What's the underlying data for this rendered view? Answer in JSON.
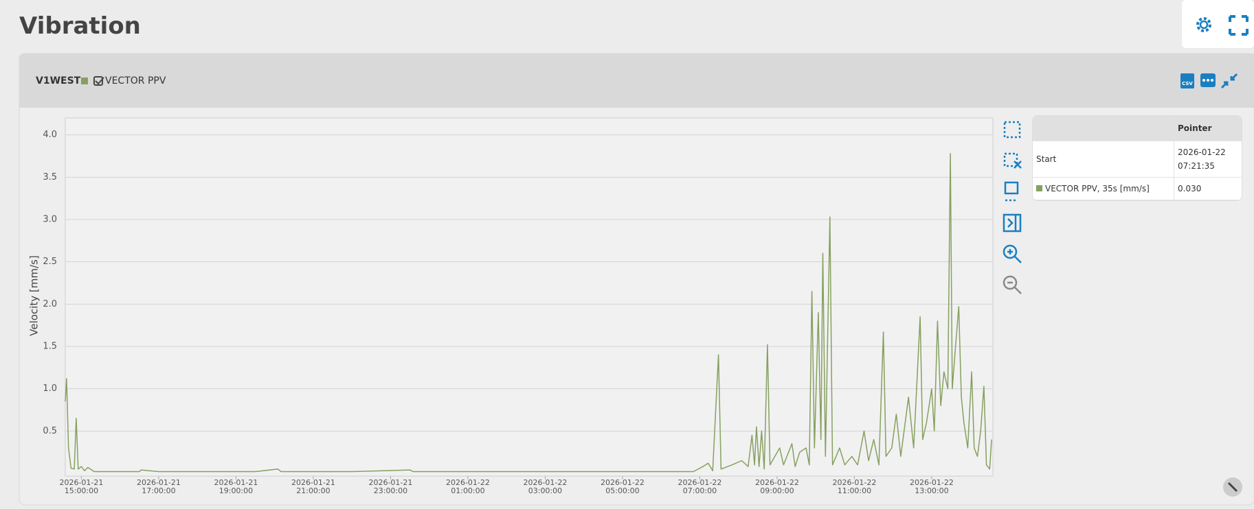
{
  "title": "Vibration",
  "panel": {
    "station": "V1WEST",
    "csv_label": "CSV"
  },
  "pointer_table": {
    "header": "Pointer",
    "rows": [
      [
        "Start",
        "2026-01-22 07:21:35"
      ],
      [
        "VECTOR PPV, 35s [mm/s]",
        "0.030"
      ]
    ]
  },
  "chart_data": {
    "type": "line",
    "y_label": "Velocity [mm/s]",
    "xlim": [
      "2026-01-21 14:35:00",
      "2026-01-22 14:35:00"
    ],
    "xticks": [
      "2026-01-21 15:00:00",
      "2026-01-21 17:00:00",
      "2026-01-21 19:00:00",
      "2026-01-21 21:00:00",
      "2026-01-21 23:00:00",
      "2026-01-22 01:00:00",
      "2026-01-22 03:00:00",
      "2026-01-22 05:00:00",
      "2026-01-22 07:00:00",
      "2026-01-22 09:00:00",
      "2026-01-22 11:00:00",
      "2026-01-22 13:00:00"
    ],
    "ylim": [
      0,
      4.2
    ],
    "yticks": [
      0.5,
      {
        "value": 1,
        "label": "1.0"
      },
      1.5,
      {
        "value": 2,
        "label": "2.0"
      },
      2.5,
      {
        "value": 3,
        "label": "3.0"
      },
      3.5,
      {
        "value": 4,
        "label": "4.0"
      }
    ],
    "grid": true,
    "x": [
      "2026-01-21 14:35:00",
      "2026-01-21 14:37:00",
      "2026-01-21 14:40:00",
      "2026-01-21 14:44:00",
      "2026-01-21 14:49:00",
      "2026-01-21 14:52:00",
      "2026-01-21 14:55:00",
      "2026-01-21 15:00:00",
      "2026-01-21 15:05:00",
      "2026-01-21 15:10:00",
      "2026-01-21 15:20:00",
      "2026-01-21 16:30:00",
      "2026-01-21 16:33:00",
      "2026-01-21 17:00:00",
      "2026-01-21 19:30:00",
      "2026-01-21 20:05:00",
      "2026-01-21 20:10:00",
      "2026-01-21 22:00:00",
      "2026-01-21 23:30:00",
      "2026-01-21 23:35:00",
      "2026-01-22 06:50:00",
      "2026-01-22 07:05:00",
      "2026-01-22 07:13:00",
      "2026-01-22 07:20:00",
      "2026-01-22 07:29:00",
      "2026-01-22 07:33:00",
      "2026-01-22 07:50:00",
      "2026-01-22 08:05:00",
      "2026-01-22 08:15:00",
      "2026-01-22 08:21:00",
      "2026-01-22 08:25:00",
      "2026-01-22 08:28:00",
      "2026-01-22 08:32:00",
      "2026-01-22 08:36:00",
      "2026-01-22 08:40:00",
      "2026-01-22 08:45:00",
      "2026-01-22 08:49:00",
      "2026-01-22 09:04:00",
      "2026-01-22 09:10:00",
      "2026-01-22 09:23:00",
      "2026-01-22 09:28:00",
      "2026-01-22 09:35:00",
      "2026-01-22 09:45:00",
      "2026-01-22 09:50:00",
      "2026-01-22 09:54:00",
      "2026-01-22 09:58:00",
      "2026-01-22 10:04:00",
      "2026-01-22 10:08:00",
      "2026-01-22 10:11:00",
      "2026-01-22 10:15:00",
      "2026-01-22 10:22:00",
      "2026-01-22 10:26:00",
      "2026-01-22 10:37:00",
      "2026-01-22 10:45:00",
      "2026-01-22 10:56:00",
      "2026-01-22 11:05:00",
      "2026-01-22 11:15:00",
      "2026-01-22 11:22:00",
      "2026-01-22 11:30:00",
      "2026-01-22 11:38:00",
      "2026-01-22 11:45:00",
      "2026-01-22 11:49:00",
      "2026-01-22 11:58:00",
      "2026-01-22 12:05:00",
      "2026-01-22 12:12:00",
      "2026-01-22 12:24:00",
      "2026-01-22 12:32:00",
      "2026-01-22 12:42:00",
      "2026-01-22 12:46:00",
      "2026-01-22 12:52:00",
      "2026-01-22 13:00:00",
      "2026-01-22 13:04:00",
      "2026-01-22 13:09:00",
      "2026-01-22 13:14:00",
      "2026-01-22 13:19:00",
      "2026-01-22 13:25:00",
      "2026-01-22 13:29:00",
      "2026-01-22 13:32:00",
      "2026-01-22 13:37:00",
      "2026-01-22 13:42:00",
      "2026-01-22 13:46:00",
      "2026-01-22 13:50:00",
      "2026-01-22 13:56:00",
      "2026-01-22 14:02:00",
      "2026-01-22 14:06:00",
      "2026-01-22 14:11:00",
      "2026-01-22 14:16:00",
      "2026-01-22 14:21:00",
      "2026-01-22 14:25:00",
      "2026-01-22 14:30:00",
      "2026-01-22 14:33:00"
    ],
    "series": [
      {
        "name": "VECTOR PPV",
        "color": "#86a060",
        "values": [
          0.85,
          1.12,
          0.3,
          0.06,
          0.05,
          0.65,
          0.05,
          0.08,
          0.03,
          0.07,
          0.02,
          0.02,
          0.04,
          0.02,
          0.02,
          0.05,
          0.02,
          0.02,
          0.04,
          0.02,
          0.02,
          0.08,
          0.12,
          0.03,
          1.4,
          0.05,
          0.1,
          0.15,
          0.08,
          0.45,
          0.1,
          0.55,
          0.08,
          0.5,
          0.05,
          1.52,
          0.1,
          0.3,
          0.1,
          0.35,
          0.08,
          0.25,
          0.3,
          0.1,
          2.15,
          0.3,
          1.9,
          0.4,
          2.6,
          0.2,
          3.03,
          0.1,
          0.3,
          0.1,
          0.2,
          0.1,
          0.5,
          0.15,
          0.4,
          0.1,
          1.67,
          0.2,
          0.3,
          0.7,
          0.2,
          0.9,
          0.3,
          1.85,
          0.4,
          0.6,
          1.0,
          0.5,
          1.8,
          0.8,
          1.2,
          1.0,
          3.78,
          1.0,
          1.5,
          1.97,
          0.9,
          0.6,
          0.3,
          1.2,
          0.3,
          0.2,
          0.5,
          1.03,
          0.1,
          0.05,
          0.4
        ]
      }
    ]
  }
}
